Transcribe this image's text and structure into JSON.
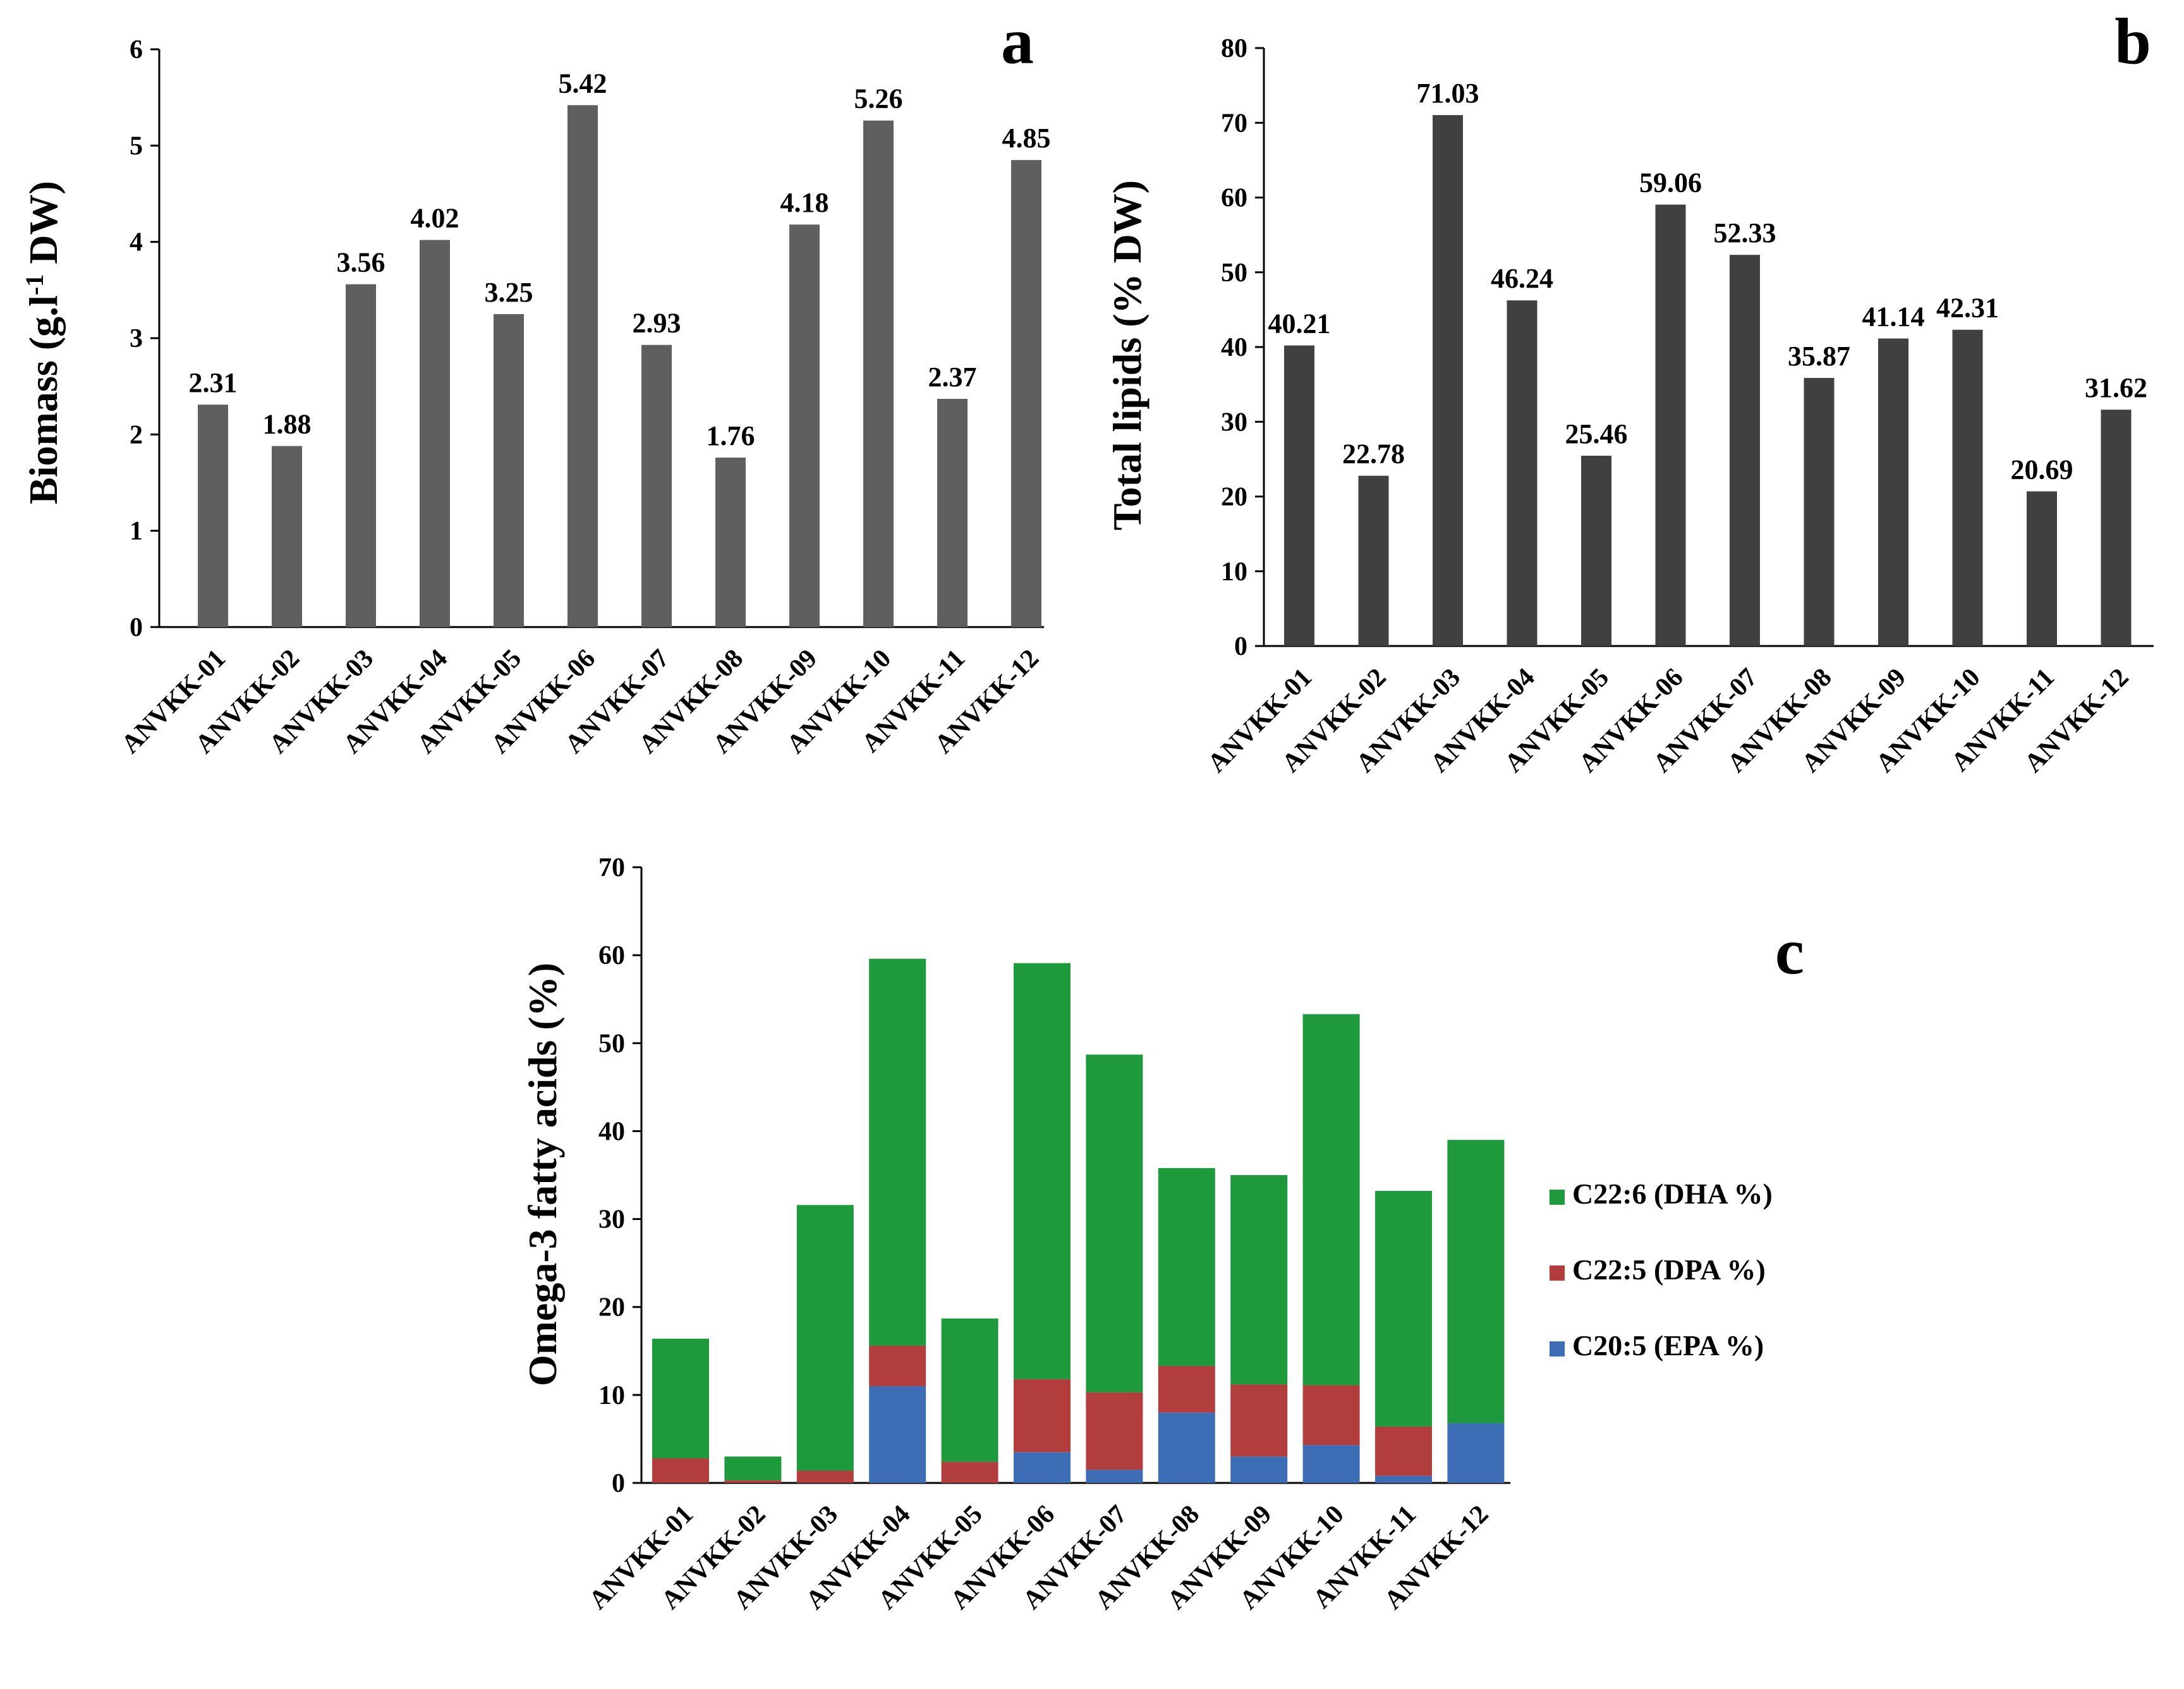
{
  "chart_data": [
    {
      "type": "bar",
      "panel_label": "a",
      "ylabel_main": "Biomass (g.l",
      "ylabel_sup": "-1",
      "ylabel_tail": " DW)",
      "categories": [
        "ANVKK-01",
        "ANVKK-02",
        "ANVKK-03",
        "ANVKK-04",
        "ANVKK-05",
        "ANVKK-06",
        "ANVKK-07",
        "ANVKK-08",
        "ANVKK-09",
        "ANVKK-10",
        "ANVKK-11",
        "ANVKK-12"
      ],
      "values": [
        2.31,
        1.88,
        3.56,
        4.02,
        3.25,
        5.42,
        2.93,
        1.76,
        4.18,
        5.26,
        2.37,
        4.85
      ],
      "value_labels": [
        "2.31",
        "1.88",
        "3.56",
        "4.02",
        "3.25",
        "5.42",
        "2.93",
        "1.76",
        "4.18",
        "5.26",
        "2.37",
        "4.85"
      ],
      "ylim": [
        0,
        6
      ],
      "yticks": [
        0,
        1,
        2,
        3,
        4,
        5,
        6
      ],
      "bar_color": "#5f5f5f"
    },
    {
      "type": "bar",
      "panel_label": "b",
      "ylabel": "Total lipids (% DW)",
      "categories": [
        "ANVKK-01",
        "ANVKK-02",
        "ANVKK-03",
        "ANVKK-04",
        "ANVKK-05",
        "ANVKK-06",
        "ANVKK-07",
        "ANVKK-08",
        "ANVKK-09",
        "ANVKK-10",
        "ANVKK-11",
        "ANVKK-12"
      ],
      "values": [
        40.21,
        22.78,
        71.03,
        46.24,
        25.46,
        59.06,
        52.33,
        35.87,
        41.14,
        42.31,
        20.69,
        31.62
      ],
      "value_labels": [
        "40.21",
        "22.78",
        "71.03",
        "46.24",
        "25.46",
        "59.06",
        "52.33",
        "35.87",
        "41.14",
        "42.31",
        "20.69",
        "31.62"
      ],
      "ylim": [
        0,
        80
      ],
      "yticks": [
        0,
        10,
        20,
        30,
        40,
        50,
        60,
        70,
        80
      ],
      "bar_color": "#404040"
    },
    {
      "type": "bar",
      "stacked": true,
      "panel_label": "c",
      "ylabel": "Omega-3 fatty acids (%)",
      "categories": [
        "ANVKK-01",
        "ANVKK-02",
        "ANVKK-03",
        "ANVKK-04",
        "ANVKK-05",
        "ANVKK-06",
        "ANVKK-07",
        "ANVKK-08",
        "ANVKK-09",
        "ANVKK-10",
        "ANVKK-11",
        "ANVKK-12"
      ],
      "series": [
        {
          "name": "C20:5 (EPA %)",
          "color": "#3d6db5",
          "values": [
            0.0,
            0.0,
            0.0,
            11.0,
            0.0,
            3.5,
            1.5,
            8.0,
            3.0,
            4.3,
            0.8,
            6.8
          ]
        },
        {
          "name": "C22:5 (DPA %)",
          "color": "#b23d3d",
          "values": [
            2.8,
            0.3,
            1.4,
            4.6,
            2.4,
            8.3,
            8.8,
            5.3,
            8.2,
            6.8,
            5.6,
            0.0
          ]
        },
        {
          "name": "C22:6 (DHA %)",
          "color": "#1e9a3c",
          "values": [
            13.6,
            2.7,
            30.2,
            44.0,
            16.3,
            47.3,
            38.4,
            22.5,
            23.8,
            42.2,
            26.8,
            32.2
          ]
        }
      ],
      "legend_order": [
        "C22:6 (DHA %)",
        "C22:5 (DPA %)",
        "C20:5 (EPA %)"
      ],
      "ylim": [
        0,
        70
      ],
      "yticks": [
        0,
        10,
        20,
        30,
        40,
        50,
        60,
        70
      ]
    }
  ]
}
